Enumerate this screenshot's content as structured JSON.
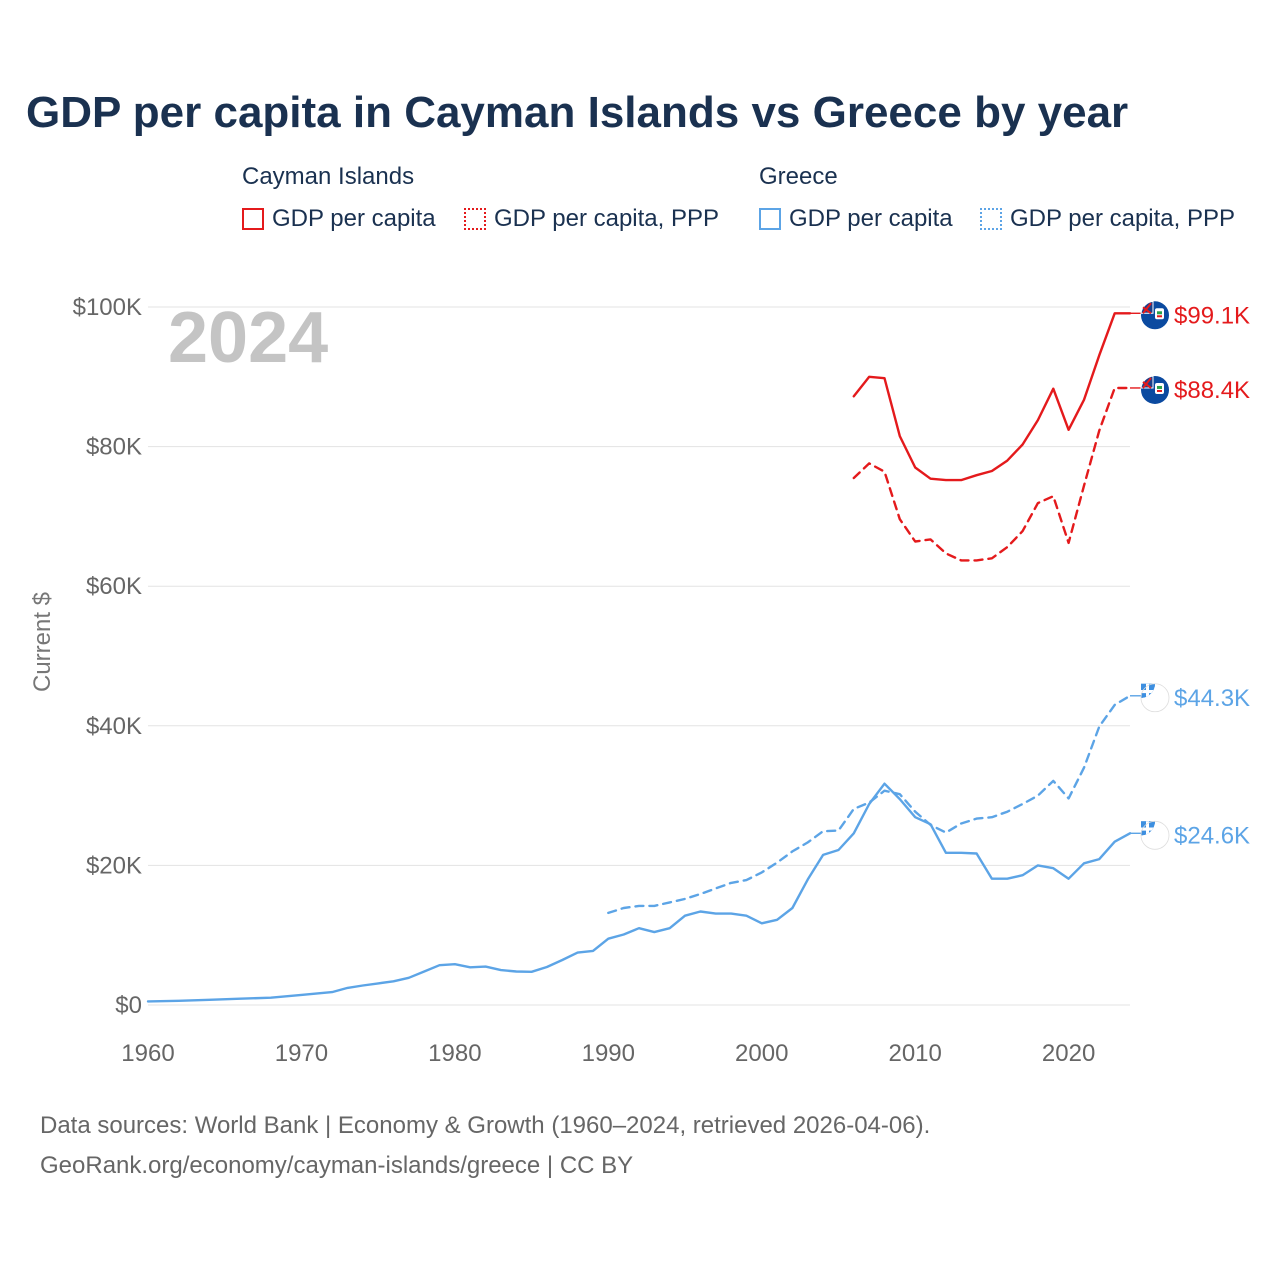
{
  "page": {
    "title": "GDP per capita in Cayman Islands vs Greece by year",
    "year_watermark": "2024",
    "source_line1": "Data sources: World Bank | Economy & Growth (1960–2024, retrieved 2026-04-06).",
    "source_line2": "GeoRank.org/economy/cayman-islands/greece | CC BY"
  },
  "legend": {
    "groups": [
      {
        "name": "Cayman Islands",
        "color": "#e41a1c",
        "items": [
          {
            "label": "GDP per capita",
            "style": "solid"
          },
          {
            "label": "GDP per capita, PPP",
            "style": "dotted"
          }
        ]
      },
      {
        "name": "Greece",
        "color": "#5ca4e6",
        "items": [
          {
            "label": "GDP per capita",
            "style": "solid"
          },
          {
            "label": "GDP per capita, PPP",
            "style": "dotted"
          }
        ]
      }
    ]
  },
  "chart_data": {
    "type": "line",
    "title": "GDP per capita in Cayman Islands vs Greece by year",
    "xlabel": "",
    "ylabel": "Current $",
    "xlim": [
      1960,
      2024
    ],
    "ylim": [
      0,
      100000
    ],
    "x_ticks": [
      1960,
      1970,
      1980,
      1990,
      2000,
      2010,
      2020
    ],
    "x_tick_labels": [
      "1960",
      "1970",
      "1980",
      "1990",
      "2000",
      "2010",
      "2020"
    ],
    "y_ticks": [
      0,
      20000,
      40000,
      60000,
      80000,
      100000
    ],
    "y_tick_labels": [
      "$0",
      "$20K",
      "$40K",
      "$60K",
      "$80K",
      "$100K"
    ],
    "grid": true,
    "series": [
      {
        "name": "Cayman Islands GDP per capita",
        "country": "Cayman Islands",
        "flag": "cayman-islands-flag-icon",
        "color": "#e41a1c",
        "dash": "solid",
        "end_label": "$99.1K",
        "x": [
          2006,
          2007,
          2008,
          2009,
          2010,
          2011,
          2012,
          2013,
          2014,
          2015,
          2016,
          2017,
          2018,
          2019,
          2020,
          2021,
          2022,
          2023,
          2024
        ],
        "values": [
          87200,
          90000,
          89800,
          81500,
          77000,
          75400,
          75200,
          75200,
          75900,
          76500,
          78000,
          80300,
          83800,
          88300,
          82400,
          86700,
          93100,
          99100,
          99100
        ]
      },
      {
        "name": "Cayman Islands GDP per capita, PPP",
        "country": "Cayman Islands",
        "flag": "cayman-islands-flag-icon",
        "color": "#e41a1c",
        "dash": "dashed",
        "end_label": "$88.4K",
        "x": [
          2006,
          2007,
          2008,
          2009,
          2010,
          2011,
          2012,
          2013,
          2014,
          2015,
          2016,
          2017,
          2018,
          2019,
          2020,
          2021,
          2022,
          2023,
          2024
        ],
        "values": [
          75500,
          77600,
          76400,
          69600,
          66400,
          66700,
          64700,
          63700,
          63700,
          64000,
          65600,
          67900,
          71900,
          72900,
          66200,
          74400,
          82300,
          88400,
          88400
        ]
      },
      {
        "name": "Greece GDP per capita",
        "country": "Greece",
        "flag": "greece-flag-icon",
        "color": "#5ca4e6",
        "dash": "solid",
        "end_label": "$24.6K",
        "x": [
          1960,
          1962,
          1964,
          1966,
          1968,
          1970,
          1972,
          1973,
          1974,
          1975,
          1976,
          1977,
          1978,
          1979,
          1980,
          1981,
          1982,
          1983,
          1984,
          1985,
          1986,
          1987,
          1988,
          1989,
          1990,
          1991,
          1992,
          1993,
          1994,
          1995,
          1996,
          1997,
          1998,
          1999,
          2000,
          2001,
          2002,
          2003,
          2004,
          2005,
          2006,
          2007,
          2008,
          2009,
          2010,
          2011,
          2012,
          2013,
          2014,
          2015,
          2016,
          2017,
          2018,
          2019,
          2020,
          2021,
          2022,
          2023,
          2024
        ],
        "values": [
          520,
          600,
          750,
          900,
          1050,
          1450,
          1850,
          2450,
          2800,
          3100,
          3400,
          3900,
          4800,
          5700,
          5850,
          5400,
          5500,
          5000,
          4800,
          4750,
          5450,
          6450,
          7500,
          7750,
          9500,
          10100,
          11000,
          10450,
          11000,
          12800,
          13400,
          13100,
          13100,
          12800,
          11700,
          12200,
          13900,
          18000,
          21500,
          22200,
          24600,
          28800,
          31700,
          29500,
          26900,
          25900,
          21800,
          21800,
          21700,
          18100,
          18100,
          18600,
          20000,
          19600,
          18100,
          20300,
          20900,
          23400,
          24600
        ]
      },
      {
        "name": "Greece GDP per capita, PPP",
        "country": "Greece",
        "flag": "greece-flag-icon",
        "color": "#5ca4e6",
        "dash": "dashed",
        "end_label": "$44.3K",
        "x": [
          1990,
          1991,
          1992,
          1993,
          1994,
          1995,
          1996,
          1997,
          1998,
          1999,
          2000,
          2001,
          2002,
          2003,
          2004,
          2005,
          2006,
          2007,
          2008,
          2009,
          2010,
          2011,
          2012,
          2013,
          2014,
          2015,
          2016,
          2017,
          2018,
          2019,
          2020,
          2021,
          2022,
          2023,
          2024
        ],
        "values": [
          13200,
          13900,
          14200,
          14200,
          14700,
          15200,
          15900,
          16700,
          17500,
          17900,
          19000,
          20400,
          22000,
          23300,
          24900,
          25000,
          28100,
          29000,
          30700,
          30200,
          27700,
          25800,
          24700,
          26000,
          26700,
          26900,
          27700,
          28800,
          30000,
          32100,
          29600,
          34000,
          39900,
          43000,
          44300
        ]
      }
    ]
  }
}
